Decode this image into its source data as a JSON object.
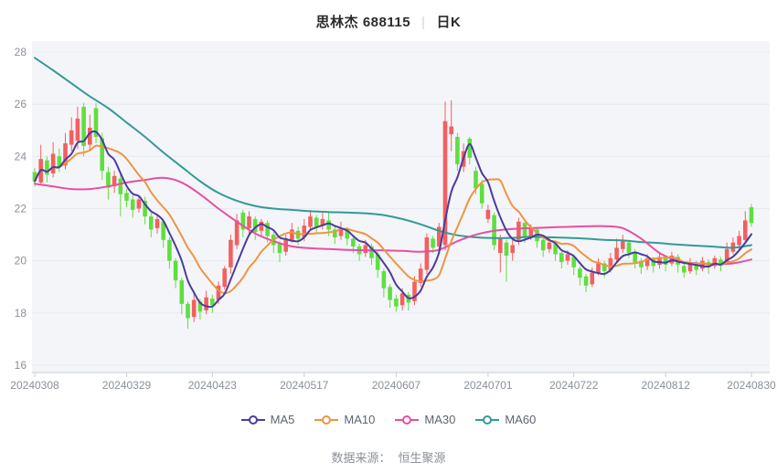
{
  "title": {
    "stock_name": "思林杰",
    "stock_code": "688115",
    "separator": "|",
    "period_label": "日K"
  },
  "footer": {
    "source_label": "数据来源：",
    "source_value": "恒生聚源"
  },
  "colors": {
    "up": "#f45f5f",
    "down": "#5fdf3f",
    "ma5": "#4a3c9e",
    "ma10": "#ee9540",
    "ma30": "#e74fa0",
    "ma60": "#339a97",
    "grid": "#e6eaf1",
    "axis": "#c9cdd4",
    "tick_text": "#8a909a",
    "plot_bg": "#f4f5f9"
  },
  "legend": [
    {
      "label": "MA5",
      "color_key": "ma5"
    },
    {
      "label": "MA10",
      "color_key": "ma10"
    },
    {
      "label": "MA30",
      "color_key": "ma30"
    },
    {
      "label": "MA60",
      "color_key": "ma60"
    }
  ],
  "chart_data": {
    "type": "candlestick",
    "title": "思林杰 688115 日K",
    "ohlc_order": "o,h,l,c",
    "y_axis": {
      "min": 16,
      "max": 28,
      "ticks": [
        16,
        18,
        20,
        22,
        24,
        26,
        28
      ]
    },
    "x_labels": [
      {
        "index": 0,
        "label": "20240308"
      },
      {
        "index": 15,
        "label": "20240329"
      },
      {
        "index": 29,
        "label": "20240423"
      },
      {
        "index": 44,
        "label": "20240517"
      },
      {
        "index": 59,
        "label": "20240607"
      },
      {
        "index": 74,
        "label": "20240701"
      },
      {
        "index": 88,
        "label": "20240722"
      },
      {
        "index": 103,
        "label": "20240812"
      },
      {
        "index": 117,
        "label": "20240830"
      }
    ],
    "candles": [
      [
        23.4,
        23.55,
        22.85,
        23.05
      ],
      [
        23.0,
        24.45,
        22.9,
        23.9
      ],
      [
        23.85,
        24.0,
        23.0,
        23.3
      ],
      [
        23.35,
        24.55,
        23.2,
        24.1
      ],
      [
        24.0,
        24.3,
        23.4,
        23.6
      ],
      [
        23.65,
        24.9,
        23.5,
        24.5
      ],
      [
        24.45,
        25.5,
        24.2,
        25.0
      ],
      [
        24.6,
        25.9,
        24.3,
        25.45
      ],
      [
        25.9,
        26.05,
        24.0,
        24.4
      ],
      [
        24.45,
        25.6,
        24.2,
        25.1
      ],
      [
        25.85,
        26.05,
        24.5,
        24.75
      ],
      [
        24.7,
        24.9,
        23.1,
        23.45
      ],
      [
        23.4,
        23.6,
        22.35,
        22.8
      ],
      [
        22.85,
        23.45,
        22.6,
        23.25
      ],
      [
        23.15,
        23.3,
        21.7,
        22.55
      ],
      [
        22.6,
        22.75,
        22.05,
        22.3
      ],
      [
        22.35,
        22.5,
        21.65,
        21.95
      ],
      [
        22.0,
        22.5,
        21.85,
        22.35
      ],
      [
        22.3,
        22.45,
        21.4,
        21.7
      ],
      [
        21.7,
        21.85,
        20.9,
        21.2
      ],
      [
        21.25,
        21.8,
        21.05,
        21.6
      ],
      [
        21.5,
        21.6,
        20.5,
        20.8
      ],
      [
        20.8,
        20.9,
        19.7,
        20.0
      ],
      [
        20.0,
        20.1,
        18.95,
        19.25
      ],
      [
        19.25,
        19.35,
        17.95,
        18.35
      ],
      [
        18.35,
        18.45,
        17.4,
        17.8
      ],
      [
        17.85,
        18.75,
        17.65,
        18.5
      ],
      [
        18.45,
        18.55,
        17.75,
        18.05
      ],
      [
        18.1,
        18.85,
        17.95,
        18.6
      ],
      [
        18.55,
        18.7,
        18.0,
        18.3
      ],
      [
        18.5,
        19.2,
        18.35,
        19.05
      ],
      [
        19.0,
        19.8,
        18.9,
        19.7
      ],
      [
        19.75,
        21.0,
        19.5,
        20.8
      ],
      [
        20.6,
        21.8,
        20.45,
        21.55
      ],
      [
        21.85,
        21.95,
        20.9,
        21.2
      ],
      [
        21.25,
        21.9,
        21.0,
        21.7
      ],
      [
        21.6,
        21.7,
        20.8,
        21.1
      ],
      [
        21.15,
        21.6,
        20.95,
        21.5
      ],
      [
        21.45,
        21.55,
        20.7,
        20.95
      ],
      [
        21.0,
        21.1,
        20.3,
        20.6
      ],
      [
        20.65,
        20.75,
        19.95,
        20.3
      ],
      [
        20.35,
        21.0,
        20.2,
        20.8
      ],
      [
        20.8,
        21.45,
        20.7,
        21.2
      ],
      [
        21.15,
        21.3,
        20.6,
        20.85
      ],
      [
        20.9,
        21.6,
        20.75,
        21.35
      ],
      [
        21.3,
        21.95,
        21.15,
        21.7
      ],
      [
        21.65,
        21.75,
        21.05,
        21.3
      ],
      [
        21.35,
        21.85,
        21.2,
        21.6
      ],
      [
        21.55,
        21.9,
        20.95,
        21.2
      ],
      [
        21.2,
        21.3,
        20.65,
        20.9
      ],
      [
        20.95,
        21.5,
        20.8,
        21.25
      ],
      [
        21.2,
        21.3,
        20.6,
        20.85
      ],
      [
        20.85,
        20.95,
        20.3,
        20.55
      ],
      [
        20.55,
        20.65,
        20.0,
        20.25
      ],
      [
        20.3,
        20.8,
        20.15,
        20.6
      ],
      [
        20.55,
        20.65,
        19.85,
        20.1
      ],
      [
        20.25,
        20.35,
        19.35,
        19.65
      ],
      [
        19.6,
        19.7,
        18.6,
        18.95
      ],
      [
        19.0,
        19.1,
        18.2,
        18.5
      ],
      [
        18.55,
        18.7,
        18.05,
        18.25
      ],
      [
        18.3,
        18.95,
        18.1,
        18.75
      ],
      [
        18.7,
        18.8,
        18.1,
        18.4
      ],
      [
        18.45,
        19.4,
        18.3,
        19.2
      ],
      [
        19.15,
        19.9,
        19.0,
        19.7
      ],
      [
        19.65,
        21.05,
        19.5,
        20.9
      ],
      [
        20.85,
        20.95,
        20.3,
        20.5
      ],
      [
        20.55,
        21.45,
        20.4,
        21.3
      ],
      [
        20.6,
        26.1,
        20.4,
        25.35
      ],
      [
        24.85,
        26.15,
        24.2,
        25.15
      ],
      [
        24.75,
        24.9,
        23.45,
        23.7
      ],
      [
        23.6,
        24.5,
        23.4,
        24.2
      ],
      [
        24.68,
        24.75,
        23.7,
        23.95
      ],
      [
        23.45,
        23.6,
        22.55,
        22.78
      ],
      [
        22.95,
        23.1,
        22.0,
        22.2
      ],
      [
        21.6,
        22.15,
        21.45,
        21.95
      ],
      [
        21.75,
        21.85,
        20.4,
        20.6
      ],
      [
        20.3,
        21.0,
        19.55,
        20.85
      ],
      [
        20.7,
        20.8,
        19.2,
        20.2
      ],
      [
        20.3,
        20.8,
        20.0,
        20.6
      ],
      [
        20.8,
        21.65,
        20.6,
        21.5
      ],
      [
        21.45,
        21.55,
        20.7,
        20.9
      ],
      [
        20.95,
        21.4,
        20.8,
        21.25
      ],
      [
        21.2,
        21.3,
        20.5,
        20.75
      ],
      [
        20.8,
        20.9,
        20.15,
        20.4
      ],
      [
        20.45,
        20.9,
        20.3,
        20.7
      ],
      [
        20.65,
        20.75,
        20.0,
        20.25
      ],
      [
        20.3,
        20.4,
        19.7,
        19.95
      ],
      [
        20.0,
        20.4,
        19.85,
        20.25
      ],
      [
        20.15,
        20.25,
        19.45,
        19.75
      ],
      [
        19.7,
        19.8,
        19.05,
        19.35
      ],
      [
        19.4,
        19.5,
        18.8,
        19.05
      ],
      [
        19.1,
        19.75,
        19.0,
        19.55
      ],
      [
        19.55,
        20.1,
        19.45,
        19.95
      ],
      [
        19.9,
        20.0,
        19.35,
        19.6
      ],
      [
        19.65,
        20.3,
        19.55,
        20.1
      ],
      [
        20.05,
        20.85,
        19.95,
        20.5
      ],
      [
        20.45,
        21.0,
        20.3,
        20.75
      ],
      [
        20.7,
        20.8,
        20.1,
        20.3
      ],
      [
        20.35,
        20.45,
        19.7,
        19.95
      ],
      [
        20.0,
        20.1,
        19.5,
        19.75
      ],
      [
        19.8,
        20.25,
        19.65,
        20.1
      ],
      [
        20.05,
        20.15,
        19.55,
        19.8
      ],
      [
        19.85,
        20.3,
        19.7,
        20.15
      ],
      [
        20.1,
        20.2,
        19.6,
        19.85
      ],
      [
        19.9,
        20.35,
        19.8,
        20.2
      ],
      [
        20.15,
        20.25,
        19.55,
        19.85
      ],
      [
        19.8,
        19.9,
        19.35,
        19.55
      ],
      [
        19.6,
        20.1,
        19.5,
        19.95
      ],
      [
        19.9,
        20.0,
        19.45,
        19.65
      ],
      [
        19.7,
        20.15,
        19.6,
        20.0
      ],
      [
        19.95,
        20.05,
        19.5,
        19.75
      ],
      [
        19.8,
        20.2,
        19.7,
        20.1
      ],
      [
        20.05,
        20.15,
        19.6,
        19.8
      ],
      [
        19.95,
        20.7,
        19.85,
        20.45
      ],
      [
        20.35,
        20.9,
        20.25,
        20.7
      ],
      [
        20.6,
        21.15,
        20.45,
        20.95
      ],
      [
        20.8,
        21.9,
        20.7,
        21.55
      ],
      [
        22.05,
        22.18,
        21.3,
        21.45
      ]
    ],
    "ma_periods": {
      "ma5": 5,
      "ma10": 10
    },
    "ma30_keypoints": [
      [
        0,
        22.95
      ],
      [
        3,
        22.85
      ],
      [
        6,
        22.75
      ],
      [
        9,
        22.75
      ],
      [
        12,
        22.85
      ],
      [
        15,
        23.0
      ],
      [
        18,
        23.1
      ],
      [
        21,
        23.18
      ],
      [
        24,
        23.0
      ],
      [
        27,
        22.55
      ],
      [
        30,
        22.0
      ],
      [
        33,
        21.5
      ],
      [
        36,
        21.05
      ],
      [
        39,
        20.75
      ],
      [
        42,
        20.55
      ],
      [
        45,
        20.48
      ],
      [
        48,
        20.45
      ],
      [
        51,
        20.42
      ],
      [
        54,
        20.4
      ],
      [
        57,
        20.4
      ],
      [
        60,
        20.38
      ],
      [
        63,
        20.35
      ],
      [
        66,
        20.42
      ],
      [
        69,
        20.75
      ],
      [
        72,
        21.0
      ],
      [
        75,
        21.15
      ],
      [
        78,
        21.22
      ],
      [
        81,
        21.25
      ],
      [
        84,
        21.28
      ],
      [
        87,
        21.3
      ],
      [
        90,
        21.32
      ],
      [
        93,
        21.33
      ],
      [
        96,
        21.25
      ],
      [
        99,
        20.85
      ],
      [
        102,
        20.3
      ],
      [
        105,
        20.0
      ],
      [
        108,
        19.9
      ],
      [
        111,
        19.87
      ],
      [
        114,
        19.9
      ],
      [
        117,
        20.05
      ]
    ],
    "ma60_keypoints": [
      [
        0,
        27.78
      ],
      [
        3,
        27.3
      ],
      [
        6,
        26.8
      ],
      [
        9,
        26.3
      ],
      [
        12,
        25.85
      ],
      [
        15,
        25.3
      ],
      [
        18,
        24.75
      ],
      [
        21,
        24.15
      ],
      [
        24,
        23.6
      ],
      [
        27,
        23.05
      ],
      [
        30,
        22.6
      ],
      [
        33,
        22.3
      ],
      [
        36,
        22.1
      ],
      [
        39,
        22.0
      ],
      [
        42,
        21.95
      ],
      [
        45,
        21.9
      ],
      [
        48,
        21.87
      ],
      [
        51,
        21.85
      ],
      [
        54,
        21.82
      ],
      [
        57,
        21.75
      ],
      [
        60,
        21.6
      ],
      [
        63,
        21.4
      ],
      [
        66,
        21.15
      ],
      [
        69,
        20.98
      ],
      [
        72,
        20.9
      ],
      [
        75,
        20.87
      ],
      [
        78,
        20.88
      ],
      [
        81,
        20.92
      ],
      [
        84,
        20.9
      ],
      [
        87,
        20.88
      ],
      [
        90,
        20.85
      ],
      [
        93,
        20.8
      ],
      [
        96,
        20.78
      ],
      [
        99,
        20.72
      ],
      [
        102,
        20.68
      ],
      [
        105,
        20.62
      ],
      [
        108,
        20.58
      ],
      [
        111,
        20.54
      ],
      [
        114,
        20.5
      ],
      [
        117,
        20.6
      ]
    ]
  }
}
